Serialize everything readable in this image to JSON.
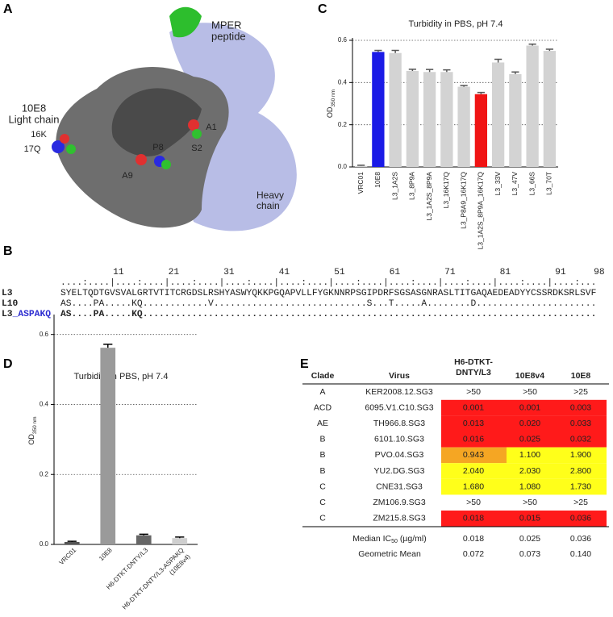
{
  "panel_letters": [
    "A",
    "B",
    "C",
    "D",
    "E"
  ],
  "panel_a": {
    "labels": [
      {
        "lines": [
          "MPER",
          "peptide"
        ],
        "color": "#2dbe2d"
      },
      {
        "lines": [
          "10E8",
          "Light chain"
        ],
        "color": "#999999"
      },
      {
        "lines": [
          "Heavy",
          "chain"
        ],
        "color": "#222222"
      },
      {
        "lines": [
          "16K"
        ],
        "color": "#222222"
      },
      {
        "lines": [
          "17Q"
        ],
        "color": "#222222"
      },
      {
        "lines": [
          "A9"
        ],
        "color": "#222222"
      },
      {
        "lines": [
          "P8"
        ],
        "color": "#222222"
      },
      {
        "lines": [
          "A1"
        ],
        "color": "#222222"
      },
      {
        "lines": [
          "S2"
        ],
        "color": "#222222"
      }
    ]
  },
  "alignment": {
    "positions": [
      11,
      21,
      31,
      41,
      51,
      61,
      71,
      81,
      91,
      98
    ],
    "ruler": "....:....|....:....|....:....|....:....|....:....|....:....|....:....|....:....|....:....|....:...",
    "rows": [
      {
        "name": "L3",
        "sequence": "SYELTQDTGVSVALGRTVTITCRGDSLRSHYASWYQKKPGQAPVLLFYGKNNRPSGIPDRFSGSASGNRASLTITGAQAEDEADYYCSSRDKSRLSVF",
        "color": "#555555"
      },
      {
        "name": "L10",
        "sequence": "AS....PA.....KQ............V............................S...T.....A........D......................",
        "color": "#555555"
      },
      {
        "name": "L3_ASPAKQ",
        "sequence": "AS....PA.....KQ...................................................................................",
        "color": "#2b2bd0"
      }
    ]
  },
  "chart_data": [
    {
      "type": "bar",
      "title": "Turbidity in PBS, pH 7.4",
      "ylabel": "OD",
      "ylabel_sub": "350 nm",
      "categories": [
        "VRC01",
        "10E8",
        "L3_1A2S",
        "L3_8P9A",
        "L3_1A2S_8P9A",
        "L3_16K17Q",
        "L3_P8A9_16K17Q",
        "L3_1A2S_8P9A_16K17Q",
        "L3_33V",
        "L3_47V",
        "L3_66S",
        "L3_70T"
      ],
      "values": [
        0.005,
        0.545,
        0.54,
        0.455,
        0.45,
        0.45,
        0.38,
        0.345,
        0.495,
        0.44,
        0.575,
        0.55
      ],
      "errors": [
        0.003,
        0.007,
        0.012,
        0.008,
        0.012,
        0.01,
        0.006,
        0.008,
        0.015,
        0.01,
        0.007,
        0.008
      ],
      "colors": [
        "#d3d3d3",
        "#1a1ae6",
        "#d3d3d3",
        "#d3d3d3",
        "#d3d3d3",
        "#d3d3d3",
        "#d3d3d3",
        "#f01414",
        "#d3d3d3",
        "#d3d3d3",
        "#d3d3d3",
        "#d3d3d3"
      ],
      "ylim": [
        0,
        0.6
      ],
      "yticks": [
        {
          "value": 0,
          "label": "0.0"
        },
        0.2,
        0.4,
        0.6
      ],
      "grid": true
    },
    {
      "type": "bar",
      "title": "Turbidity in PBS, pH 7.4",
      "ylabel": "OD",
      "ylabel_sub": "350 nm",
      "categories": [
        [
          "VRC01"
        ],
        [
          "10E8"
        ],
        [
          "H6-DTKT-DNTY/L3"
        ],
        [
          "H6-DTKT-DNTY/L3-ASPAKQ",
          "(10E8v4)"
        ]
      ],
      "values": [
        0.007,
        0.562,
        0.026,
        0.018
      ],
      "errors": [
        0.002,
        0.01,
        0.003,
        0.003
      ],
      "colors": [
        "#555555",
        "#9a9a9a",
        "#666666",
        "#cfcfcf"
      ],
      "ylim": [
        0,
        0.65
      ],
      "yticks": [
        {
          "value": 0,
          "label": "0.0"
        },
        0.2,
        0.4,
        0.6
      ],
      "grid": true
    }
  ],
  "table": {
    "header": [
      [
        "Clade"
      ],
      [
        "Virus"
      ],
      [
        "H6-DTKT-",
        "DNTY/L3"
      ],
      [
        "10E8v4"
      ],
      [
        "10E8"
      ]
    ],
    "rows": [
      [
        "A",
        "KER2008.12.SG3",
        ">50",
        ">50",
        ">25"
      ],
      [
        "ACD",
        "6095.V1.C10.SG3",
        "0.001",
        "0.001",
        "0.003"
      ],
      [
        "AE",
        "TH966.8.SG3",
        "0.013",
        "0.020",
        "0.033"
      ],
      [
        "B",
        "6101.10.SG3",
        "0.016",
        "0.025",
        "0.032"
      ],
      [
        "B",
        "PVO.04.SG3",
        "0.943",
        "1.100",
        "1.900"
      ],
      [
        "B",
        "YU2.DG.SG3",
        "2.040",
        "2.030",
        "2.800"
      ],
      [
        "C",
        "CNE31.SG3",
        "1.680",
        "1.080",
        "1.730"
      ],
      [
        "C",
        "ZM106.9.SG3",
        ">50",
        ">50",
        ">25"
      ],
      [
        "C",
        "ZM215.8.SG3",
        "0.018",
        "0.015",
        "0.036"
      ]
    ],
    "cell_colors": [
      [
        null,
        null,
        null
      ],
      [
        "#ff1a1a",
        "#ff1a1a",
        "#ff1a1a"
      ],
      [
        "#ff1a1a",
        "#ff1a1a",
        "#ff1a1a"
      ],
      [
        "#ff1a1a",
        "#ff1a1a",
        "#ff1a1a"
      ],
      [
        "#f5a623",
        "#ffff1a",
        "#ffff1a"
      ],
      [
        "#ffff1a",
        "#ffff1a",
        "#ffff1a"
      ],
      [
        "#ffff1a",
        "#ffff1a",
        "#ffff1a"
      ],
      [
        null,
        null,
        null
      ],
      [
        "#ff1a1a",
        "#ff1a1a",
        "#ff1a1a"
      ]
    ],
    "summary": [
      {
        "label": "Median IC",
        "sub": "50",
        "rest": " (µg/ml)",
        "values": [
          "0.018",
          "0.025",
          "0.036"
        ]
      },
      {
        "label": "Geometric Mean",
        "values": [
          "0.072",
          "0.073",
          "0.140"
        ]
      }
    ]
  }
}
